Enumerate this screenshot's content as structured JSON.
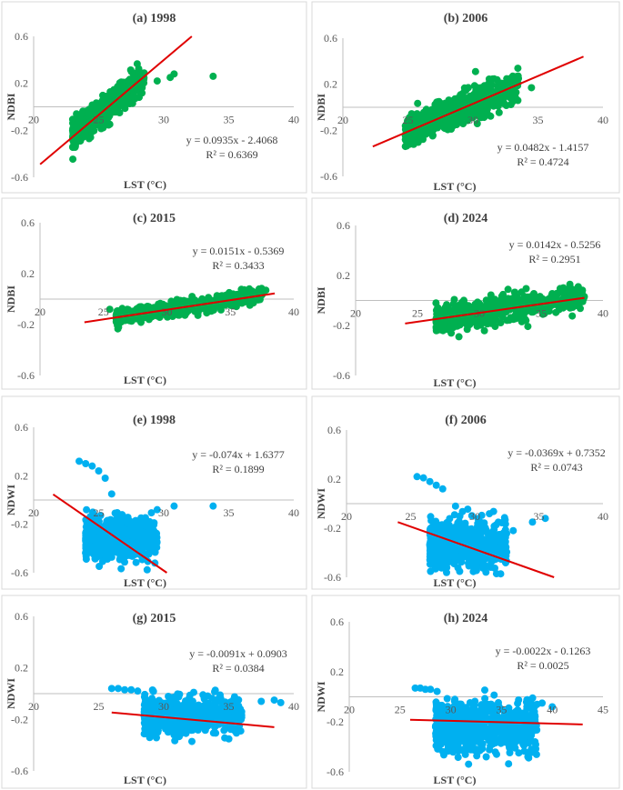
{
  "chart_data": [
    {
      "type": "scatter",
      "title": "(a) 1998",
      "xlabel": "LST (°C)",
      "ylabel": "NDBI",
      "xlim": [
        20,
        40
      ],
      "ylim": [
        -0.6,
        0.6
      ],
      "xticks": [
        "20",
        "25",
        "30",
        "35",
        "40"
      ],
      "yticks": [
        "0.6",
        "0.2",
        "-0.2",
        "-0.6"
      ],
      "point_color": "#00b050",
      "trendline": {
        "slope": 0.0935,
        "intercept": -2.4068,
        "equation": "y = 0.0935x - 2.4068",
        "r2": "R² = 0.6369"
      },
      "cluster": {
        "x_min": 23.0,
        "x_max": 28.5,
        "y_spread": 0.1
      },
      "extra_points": [
        [
          30.8,
          0.28
        ],
        [
          33.8,
          0.26
        ],
        [
          29.5,
          0.22
        ],
        [
          30.5,
          0.25
        ]
      ]
    },
    {
      "type": "scatter",
      "title": "(b) 2006",
      "xlabel": "LST (°C)",
      "ylabel": "NDBI",
      "xlim": [
        20,
        40
      ],
      "ylim": [
        -0.6,
        0.6
      ],
      "xticks": [
        "20",
        "25",
        "30",
        "35",
        "40"
      ],
      "yticks": [
        "0.6",
        "0.2",
        "-0.2",
        "-0.6"
      ],
      "point_color": "#00b050",
      "trendline": {
        "slope": 0.0482,
        "intercept": -1.4157,
        "equation": "y = 0.0482x - 1.4157",
        "r2": "R² = 0.4724"
      },
      "cluster": {
        "x_min": 24.8,
        "x_max": 33.5,
        "y_spread": 0.12
      },
      "extra_points": [
        [
          30.2,
          0.31
        ],
        [
          34.5,
          0.17
        ],
        [
          33.5,
          0.25
        ],
        [
          26.0,
          -0.26
        ]
      ]
    },
    {
      "type": "scatter",
      "title": "(c) 2015",
      "xlabel": "LST (°C)",
      "ylabel": "NDBI",
      "xlim": [
        20,
        40
      ],
      "ylim": [
        -0.6,
        0.6
      ],
      "xticks": [
        "20",
        "25",
        "30",
        "35",
        "40"
      ],
      "yticks": [
        "0.6",
        "0.2",
        "-0.2",
        "-0.6"
      ],
      "point_color": "#00b050",
      "trendline": {
        "slope": 0.0151,
        "intercept": -0.5369,
        "equation": "y = 0.0151x - 0.5369",
        "r2": "R² = 0.3433"
      },
      "cluster": {
        "x_min": 26.0,
        "x_max": 37.5,
        "y_spread": 0.05
      },
      "extra_points": [
        [
          37.8,
          0.07
        ],
        [
          36.5,
          0.08
        ],
        [
          25.5,
          -0.08
        ]
      ]
    },
    {
      "type": "scatter",
      "title": "(d) 2024",
      "xlabel": "LST (°C)",
      "ylabel": "NDBI",
      "xlim": [
        20,
        40
      ],
      "ylim": [
        -0.6,
        0.6
      ],
      "xticks": [
        "20",
        "25",
        "30",
        "35",
        "40"
      ],
      "yticks": [
        "0.6",
        "0.2",
        "-0.2",
        "-0.6"
      ],
      "point_color": "#00b050",
      "trendline": {
        "slope": 0.0142,
        "intercept": -0.5256,
        "equation": "y = 0.0142x - 0.5256",
        "r2": "R² = 0.2951"
      },
      "cluster": {
        "x_min": 26.5,
        "x_max": 38.5,
        "y_spread": 0.09
      },
      "extra_points": [
        [
          38.0,
          0.11
        ],
        [
          37.5,
          0.09
        ],
        [
          26.5,
          -0.02
        ]
      ]
    },
    {
      "type": "scatter",
      "title": "(e) 1998",
      "xlabel": "LST (°C)",
      "ylabel": "NDWI",
      "xlim": [
        20,
        40
      ],
      "ylim": [
        -0.6,
        0.6
      ],
      "xticks": [
        "20",
        "25",
        "30",
        "35",
        "40"
      ],
      "yticks": [
        "0.6",
        "0.2",
        "-0.2",
        "-0.6"
      ],
      "point_color": "#00b0f0",
      "trendline": {
        "slope": -0.074,
        "intercept": 1.6377,
        "equation": "y = -0.074x + 1.6377",
        "r2": "R² = 0.1899"
      },
      "cluster": {
        "x_min": 24.0,
        "x_max": 29.5,
        "y_center": -0.32,
        "y_spread": 0.12
      },
      "extra_points": [
        [
          23.5,
          0.32
        ],
        [
          24.0,
          0.3
        ],
        [
          24.5,
          0.28
        ],
        [
          25.0,
          0.24
        ],
        [
          25.5,
          0.18
        ],
        [
          26.0,
          0.05
        ],
        [
          30.8,
          -0.05
        ],
        [
          33.8,
          -0.05
        ],
        [
          29.5,
          -0.08
        ]
      ]
    },
    {
      "type": "scatter",
      "title": "(f) 2006",
      "xlabel": "LST (°C)",
      "ylabel": "NDWI",
      "xlim": [
        20,
        40
      ],
      "ylim": [
        -0.6,
        0.6
      ],
      "xticks": [
        "20",
        "25",
        "30",
        "35",
        "40"
      ],
      "yticks": [
        "0.6",
        "0.2",
        "-0.2",
        "-0.6"
      ],
      "point_color": "#00b0f0",
      "trendline": {
        "slope": -0.0369,
        "intercept": 0.7352,
        "equation": "y = -0.0369x + 0.7352",
        "r2": "R² = 0.0743"
      },
      "cluster": {
        "x_min": 26.5,
        "x_max": 32.5,
        "y_center": -0.33,
        "y_spread": 0.14
      },
      "extra_points": [
        [
          25.5,
          0.22
        ],
        [
          26.0,
          0.21
        ],
        [
          26.5,
          0.18
        ],
        [
          27.0,
          0.15
        ],
        [
          27.5,
          0.12
        ],
        [
          34.5,
          -0.15
        ],
        [
          33.0,
          -0.22
        ],
        [
          35.5,
          -0.12
        ],
        [
          28.5,
          -0.02
        ]
      ]
    },
    {
      "type": "scatter",
      "title": "(g) 2015",
      "xlabel": "LST (°C)",
      "ylabel": "NDWI",
      "xlim": [
        20,
        40
      ],
      "ylim": [
        -0.6,
        0.6
      ],
      "xticks": [
        "20",
        "25",
        "30",
        "35",
        "40"
      ],
      "yticks": [
        "0.6",
        "0.2",
        "-0.2",
        "-0.6"
      ],
      "point_color": "#00b0f0",
      "trendline": {
        "slope": -0.0091,
        "intercept": 0.0903,
        "equation": "y = -0.0091x + 0.0903",
        "r2": "R² = 0.0384"
      },
      "cluster": {
        "x_min": 28.5,
        "x_max": 36.0,
        "y_center": -0.17,
        "y_spread": 0.1
      },
      "extra_points": [
        [
          26.0,
          0.04
        ],
        [
          26.5,
          0.04
        ],
        [
          27.0,
          0.03
        ],
        [
          27.5,
          0.03
        ],
        [
          28.0,
          0.02
        ],
        [
          37.5,
          -0.06
        ],
        [
          38.5,
          -0.05
        ],
        [
          39.0,
          -0.07
        ]
      ]
    },
    {
      "type": "scatter",
      "title": "(h) 2024",
      "xlabel": "LST (°C)",
      "ylabel": "NDWI",
      "xlim": [
        20,
        45
      ],
      "ylim": [
        -0.6,
        0.6
      ],
      "xticks": [
        "20",
        "25",
        "30",
        "35",
        "40",
        "45"
      ],
      "yticks": [
        "0.6",
        "0.2",
        "-0.2",
        "-0.6"
      ],
      "point_color": "#00b0f0",
      "trendline": {
        "slope": -0.0022,
        "intercept": -0.1263,
        "equation": "y = -0.0022x - 0.1263",
        "r2": "R² = 0.0025"
      },
      "cluster": {
        "x_min": 28.5,
        "x_max": 38.5,
        "y_center": -0.24,
        "y_spread": 0.15
      },
      "extra_points": [
        [
          26.5,
          0.07
        ],
        [
          27.0,
          0.07
        ],
        [
          27.5,
          0.06
        ],
        [
          28.0,
          0.06
        ],
        [
          39.0,
          -0.05
        ],
        [
          40.0,
          -0.08
        ],
        [
          38.5,
          -0.06
        ]
      ]
    }
  ]
}
